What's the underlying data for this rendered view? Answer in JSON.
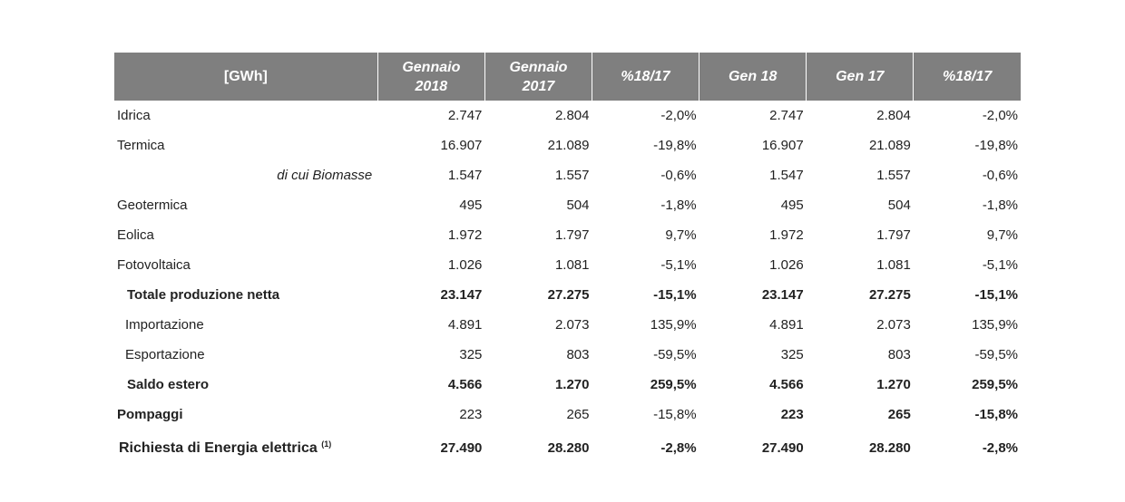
{
  "table": {
    "headers": [
      "[GWh]",
      "Gennaio\n2018",
      "Gennaio\n2017",
      "%18/17",
      "Gen 18",
      "Gen 17",
      "%18/17"
    ],
    "rows": [
      {
        "label": "Idrica",
        "values": [
          "2.747",
          "2.804",
          "-2,0%",
          "2.747",
          "2.804",
          "-2,0%"
        ]
      },
      {
        "label": "Termica",
        "values": [
          "16.907",
          "21.089",
          "-19,8%",
          "16.907",
          "21.089",
          "-19,8%"
        ]
      },
      {
        "label": "di cui Biomasse",
        "values": [
          "1.547",
          "1.557",
          "-0,6%",
          "1.547",
          "1.557",
          "-0,6%"
        ]
      },
      {
        "label": "Geotermica",
        "values": [
          "495",
          "504",
          "-1,8%",
          "495",
          "504",
          "-1,8%"
        ]
      },
      {
        "label": "Eolica",
        "values": [
          "1.972",
          "1.797",
          "9,7%",
          "1.972",
          "1.797",
          "9,7%"
        ]
      },
      {
        "label": "Fotovoltaica",
        "values": [
          "1.026",
          "1.081",
          "-5,1%",
          "1.026",
          "1.081",
          "-5,1%"
        ]
      },
      {
        "label": "Totale produzione netta",
        "values": [
          "23.147",
          "27.275",
          "-15,1%",
          "23.147",
          "27.275",
          "-15,1%"
        ]
      },
      {
        "label": "Importazione",
        "values": [
          "4.891",
          "2.073",
          "135,9%",
          "4.891",
          "2.073",
          "135,9%"
        ]
      },
      {
        "label": "Esportazione",
        "values": [
          "325",
          "803",
          "-59,5%",
          "325",
          "803",
          "-59,5%"
        ]
      },
      {
        "label": "Saldo estero",
        "values": [
          "4.566",
          "1.270",
          "259,5%",
          "4.566",
          "1.270",
          "259,5%"
        ]
      },
      {
        "label": "Pompaggi",
        "values": [
          "223",
          "265",
          "-15,8%",
          "223",
          "265",
          "-15,8%"
        ]
      },
      {
        "label": "Richiesta di Energia elettrica",
        "sup": "(1)",
        "values": [
          "27.490",
          "28.280",
          "-2,8%",
          "27.490",
          "28.280",
          "-2,8%"
        ]
      }
    ]
  }
}
